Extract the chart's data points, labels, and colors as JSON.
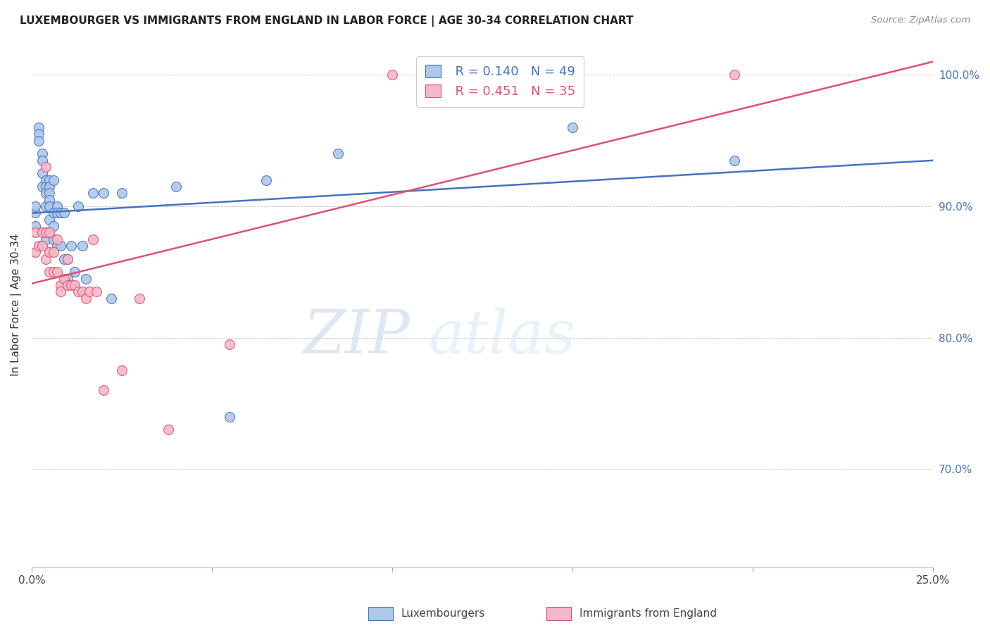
{
  "title": "LUXEMBOURGER VS IMMIGRANTS FROM ENGLAND IN LABOR FORCE | AGE 30-34 CORRELATION CHART",
  "source": "Source: ZipAtlas.com",
  "ylabel": "In Labor Force | Age 30-34",
  "blue_R": 0.14,
  "blue_N": 49,
  "pink_R": 0.451,
  "pink_N": 35,
  "legend_label_blue": "Luxembourgers",
  "legend_label_pink": "Immigrants from England",
  "blue_color": "#aec8e8",
  "pink_color": "#f5b8c8",
  "line_blue": "#4472c4",
  "line_pink": "#e05070",
  "blue_x": [
    0.001,
    0.001,
    0.001,
    0.002,
    0.002,
    0.002,
    0.003,
    0.003,
    0.003,
    0.003,
    0.004,
    0.004,
    0.004,
    0.004,
    0.004,
    0.005,
    0.005,
    0.005,
    0.005,
    0.005,
    0.005,
    0.006,
    0.006,
    0.006,
    0.006,
    0.007,
    0.007,
    0.007,
    0.008,
    0.008,
    0.009,
    0.009,
    0.01,
    0.01,
    0.011,
    0.012,
    0.013,
    0.014,
    0.015,
    0.017,
    0.02,
    0.022,
    0.025,
    0.04,
    0.055,
    0.065,
    0.085,
    0.15,
    0.195
  ],
  "blue_y": [
    0.895,
    0.9,
    0.885,
    0.96,
    0.955,
    0.95,
    0.94,
    0.935,
    0.925,
    0.915,
    0.92,
    0.915,
    0.91,
    0.9,
    0.875,
    0.92,
    0.915,
    0.91,
    0.905,
    0.9,
    0.89,
    0.92,
    0.895,
    0.885,
    0.875,
    0.9,
    0.895,
    0.87,
    0.895,
    0.87,
    0.895,
    0.86,
    0.86,
    0.845,
    0.87,
    0.85,
    0.9,
    0.87,
    0.845,
    0.91,
    0.91,
    0.83,
    0.91,
    0.915,
    0.74,
    0.92,
    0.94,
    0.96,
    0.935
  ],
  "pink_x": [
    0.001,
    0.001,
    0.002,
    0.003,
    0.003,
    0.004,
    0.004,
    0.004,
    0.005,
    0.005,
    0.005,
    0.006,
    0.006,
    0.007,
    0.007,
    0.008,
    0.008,
    0.009,
    0.01,
    0.01,
    0.011,
    0.012,
    0.013,
    0.014,
    0.015,
    0.016,
    0.017,
    0.018,
    0.02,
    0.025,
    0.03,
    0.038,
    0.055,
    0.1,
    0.195
  ],
  "pink_y": [
    0.88,
    0.865,
    0.87,
    0.88,
    0.87,
    0.93,
    0.88,
    0.86,
    0.88,
    0.865,
    0.85,
    0.865,
    0.85,
    0.875,
    0.85,
    0.84,
    0.835,
    0.845,
    0.86,
    0.84,
    0.84,
    0.84,
    0.835,
    0.835,
    0.83,
    0.835,
    0.875,
    0.835,
    0.76,
    0.775,
    0.83,
    0.73,
    0.795,
    1.0,
    1.0
  ],
  "xmin": 0.0,
  "xmax": 0.25,
  "ymin": 0.625,
  "ymax": 1.025,
  "ytick_vals": [
    0.7,
    0.8,
    0.9,
    1.0
  ],
  "ytick_labels": [
    "70.0%",
    "80.0%",
    "90.0%",
    "100.0%"
  ],
  "figwidth": 14.06,
  "figheight": 8.92
}
